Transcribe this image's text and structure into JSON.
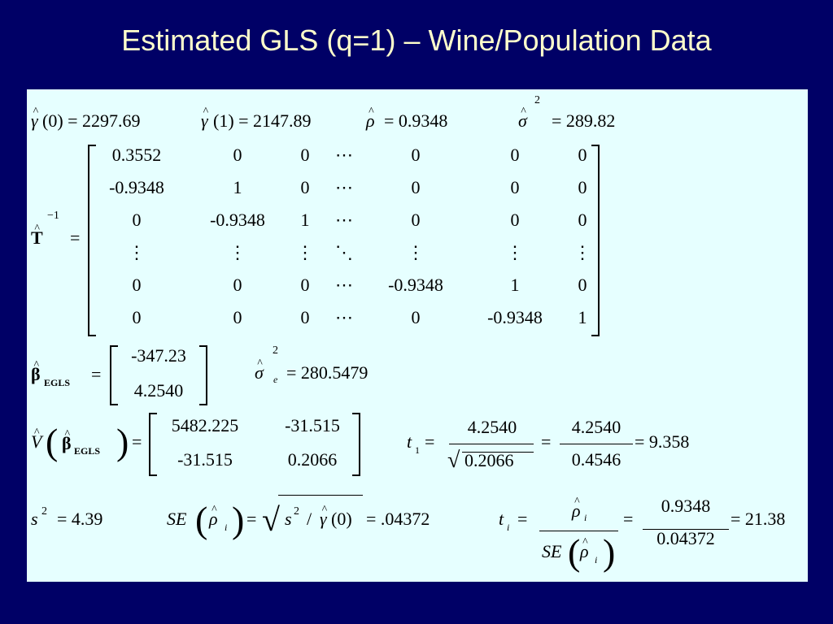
{
  "title": "Estimated GLS (q=1) – Wine/Population Data",
  "gamma0": {
    "symbol": "γ",
    "rest": "(0) = 2297.69"
  },
  "gamma1": {
    "symbol": "γ",
    "rest": "(1) = 2147.89"
  },
  "rho": {
    "symbol": "ρ",
    "rest": "= 0.9348"
  },
  "sigma2": {
    "symbol": "σ",
    "sup": "2",
    "rest": "= 289.82"
  },
  "t_inverse": {
    "symbol": "T",
    "sup": "−1",
    "eq": "=",
    "rows": [
      [
        "0.3552",
        "0",
        "0",
        "⋯",
        "0",
        "0",
        "0"
      ],
      [
        "-0.9348",
        "1",
        "0",
        "⋯",
        "0",
        "0",
        "0"
      ],
      [
        "0",
        "-0.9348",
        "1",
        "⋯",
        "0",
        "0",
        "0"
      ],
      [
        "⋮",
        "⋮",
        "⋮",
        "⋱",
        "⋮",
        "⋮",
        "⋮"
      ],
      [
        "0",
        "0",
        "0",
        "⋯",
        "-0.9348",
        "1",
        "0"
      ],
      [
        "0",
        "0",
        "0",
        "⋯",
        "0",
        "-0.9348",
        "1"
      ]
    ]
  },
  "beta": {
    "symbol": "β",
    "sub": "EGLS",
    "eq": "=",
    "rows": [
      "-347.23",
      "4.2540"
    ]
  },
  "sigma_e2": {
    "symbol": "σ",
    "sub": "e",
    "sup": "2",
    "rest": "= 280.5479"
  },
  "var_beta": {
    "symbol": "V",
    "open": "(",
    "inner": "β",
    "sub": "EGLS",
    "close": ")",
    "eq": "=",
    "rows": [
      [
        "5482.225",
        "-31.515"
      ],
      [
        "-31.515",
        "0.2066"
      ]
    ]
  },
  "t1": {
    "symbol": "t",
    "sub": "1",
    "eq": "=",
    "num": "4.2540",
    "root": "√",
    "den": "0.2066",
    "eq2": "=",
    "num2": "4.2540",
    "den2": "0.4546",
    "rest": "= 9.358"
  },
  "s2": {
    "symbol": "s",
    "sup": "2",
    "rest": "= 4.39"
  },
  "se": {
    "prefix": "SE",
    "open": "(",
    "symbol": "ρ",
    "sub": "i",
    "close": ")",
    "eq": "=",
    "root": "√",
    "radicand": "s",
    "radicand_sup": "2",
    "radicand_op": "/",
    "radicand_symbol": "γ",
    "radicand_rest": "(0)",
    "rest": "= .04372"
  },
  "ti": {
    "symbol": "t",
    "sub": "i",
    "eq": "=",
    "num": "ρ",
    "num_sub": "i",
    "den_prefix": "SE",
    "den_open": "(",
    "den_symbol": "ρ",
    "den_sub": "i",
    "den_close": ")",
    "eq2": "=",
    "num2": "0.9348",
    "den2": "0.04372",
    "rest": "= 21.38"
  }
}
